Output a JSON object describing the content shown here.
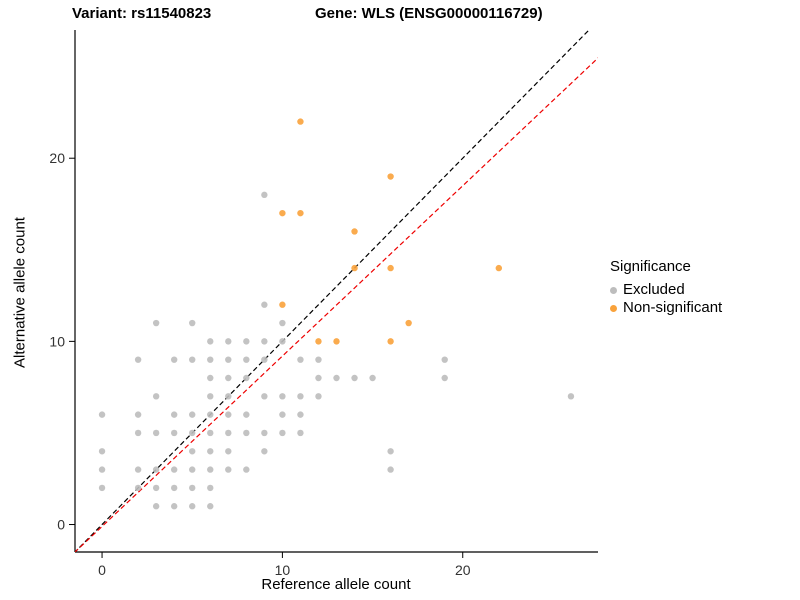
{
  "header": {
    "title_left": "Variant: rs11540823",
    "title_right": "Gene: WLS (ENSG00000116729)"
  },
  "chart_data": {
    "type": "scatter",
    "title_left": "Variant: rs11540823",
    "title_right": "Gene: WLS (ENSG00000116729)",
    "xlabel": "Reference allele count",
    "ylabel": "Alternative allele count",
    "xlim": [
      -1.5,
      27.5
    ],
    "ylim": [
      -1.5,
      27
    ],
    "x_ticks": [
      0,
      10,
      20
    ],
    "y_ticks": [
      0,
      10,
      20
    ],
    "grid": "off",
    "legend_title": "Significance",
    "legend_position": "right",
    "series": [
      {
        "name": "Excluded",
        "color": "#BDBDBD",
        "points": [
          [
            3,
            1
          ],
          [
            4,
            1
          ],
          [
            5,
            1
          ],
          [
            6,
            1
          ],
          [
            0,
            2
          ],
          [
            2,
            2
          ],
          [
            3,
            2
          ],
          [
            4,
            2
          ],
          [
            5,
            2
          ],
          [
            6,
            2
          ],
          [
            0,
            3
          ],
          [
            2,
            3
          ],
          [
            3,
            3
          ],
          [
            4,
            3
          ],
          [
            5,
            3
          ],
          [
            6,
            3
          ],
          [
            7,
            3
          ],
          [
            8,
            3
          ],
          [
            16,
            3
          ],
          [
            0,
            4
          ],
          [
            5,
            4
          ],
          [
            6,
            4
          ],
          [
            7,
            4
          ],
          [
            9,
            4
          ],
          [
            16,
            4
          ],
          [
            2,
            5
          ],
          [
            3,
            5
          ],
          [
            4,
            5
          ],
          [
            5,
            5
          ],
          [
            6,
            5
          ],
          [
            7,
            5
          ],
          [
            8,
            5
          ],
          [
            9,
            5
          ],
          [
            10,
            5
          ],
          [
            11,
            5
          ],
          [
            0,
            6
          ],
          [
            2,
            6
          ],
          [
            4,
            6
          ],
          [
            5,
            6
          ],
          [
            6,
            6
          ],
          [
            7,
            6
          ],
          [
            8,
            6
          ],
          [
            10,
            6
          ],
          [
            11,
            6
          ],
          [
            3,
            7
          ],
          [
            6,
            7
          ],
          [
            7,
            7
          ],
          [
            9,
            7
          ],
          [
            10,
            7
          ],
          [
            11,
            7
          ],
          [
            12,
            7
          ],
          [
            26,
            7
          ],
          [
            6,
            8
          ],
          [
            7,
            8
          ],
          [
            8,
            8
          ],
          [
            12,
            8
          ],
          [
            13,
            8
          ],
          [
            14,
            8
          ],
          [
            15,
            8
          ],
          [
            19,
            8
          ],
          [
            2,
            9
          ],
          [
            4,
            9
          ],
          [
            5,
            9
          ],
          [
            6,
            9
          ],
          [
            7,
            9
          ],
          [
            8,
            9
          ],
          [
            9,
            9
          ],
          [
            11,
            9
          ],
          [
            12,
            9
          ],
          [
            19,
            9
          ],
          [
            6,
            10
          ],
          [
            7,
            10
          ],
          [
            8,
            10
          ],
          [
            9,
            10
          ],
          [
            10,
            10
          ],
          [
            3,
            11
          ],
          [
            5,
            11
          ],
          [
            10,
            11
          ],
          [
            9,
            12
          ],
          [
            9,
            18
          ]
        ]
      },
      {
        "name": "Non-significant",
        "color": "#F9A23B",
        "points": [
          [
            11,
            22
          ],
          [
            16,
            19
          ],
          [
            10,
            17
          ],
          [
            11,
            17
          ],
          [
            14,
            16
          ],
          [
            14,
            14
          ],
          [
            16,
            14
          ],
          [
            22,
            14
          ],
          [
            10,
            12
          ],
          [
            17,
            11
          ],
          [
            12,
            10
          ],
          [
            13,
            10
          ],
          [
            16,
            10
          ]
        ]
      }
    ],
    "lines": [
      {
        "name": "identity-line",
        "color": "#000000",
        "slope": 1.0,
        "intercept": 0,
        "dash": "5,3"
      },
      {
        "name": "fit-line",
        "color": "#EE0000",
        "slope": 0.93,
        "intercept": -0.105,
        "dash": "5,3"
      }
    ]
  }
}
